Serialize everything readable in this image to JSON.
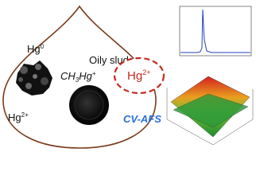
{
  "drop_title": "Oily sludge",
  "species": {
    "hg0": [
      "Hg",
      "0"
    ],
    "methyl": [
      "CH",
      "3",
      "Hg",
      "+"
    ],
    "hg2": [
      "Hg",
      "2+"
    ]
  },
  "detected": [
    "Hg",
    "2+"
  ],
  "method": "CV-AFS"
}
